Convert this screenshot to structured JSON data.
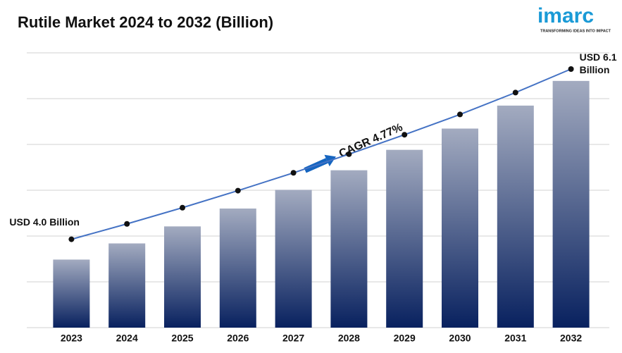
{
  "chart_data": {
    "type": "bar_line",
    "title": "Rutile Market 2024 to 2032 (Billion)",
    "categories": [
      "2023",
      "2024",
      "2025",
      "2026",
      "2027",
      "2028",
      "2029",
      "2030",
      "2031",
      "2032"
    ],
    "values": [
      4.0,
      4.19,
      4.39,
      4.6,
      4.82,
      5.05,
      5.29,
      5.54,
      5.81,
      6.1
    ],
    "value_labels": [
      "USD 4.0 Billion",
      null,
      null,
      null,
      null,
      null,
      null,
      null,
      null,
      "USD 6.1 Billion"
    ],
    "ylim": [
      3.2,
      6.43
    ],
    "y2lim": [
      2.91,
      6.3
    ],
    "bar_color_top": "#a3abc0",
    "bar_color_bottom": "#08215f",
    "line_color": "#4472c4",
    "marker_color": "#111111",
    "annotation": "CAGR 4.77%",
    "logo": {
      "name": "imarc",
      "tagline": "TRANSFORMING IDEAS INTO IMPACT"
    }
  }
}
